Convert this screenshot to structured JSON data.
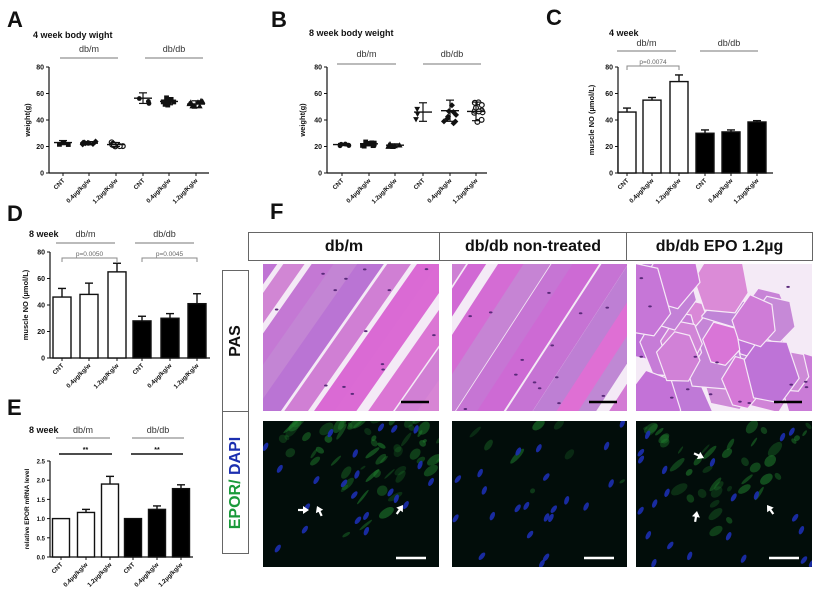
{
  "figure": {
    "panels": {
      "A": {
        "letter": "A",
        "title": "4 week body wight"
      },
      "B": {
        "letter": "B",
        "title": "8 week body weight"
      },
      "C": {
        "letter": "C",
        "title": "4 week"
      },
      "D": {
        "letter": "D",
        "title": "8 week"
      },
      "E": {
        "letter": "E",
        "title": "8 week"
      },
      "F": {
        "letter": "F"
      }
    },
    "panelF": {
      "column_headers": [
        "db/m",
        "db/db non-treated",
        "db/db  EPO 1.2µg"
      ],
      "row_labels": {
        "pas": "PAS",
        "epor_part": "EPOR/",
        "dapi_part": " DAPI"
      },
      "colors": {
        "epor": "#1a9a3a",
        "dapi": "#1c2fb0",
        "pas_stain": "#c86ad8",
        "fluor_bg": "#020d0a"
      },
      "images": [
        {
          "row": "PAS",
          "column": "db/m",
          "scale_bar": true
        },
        {
          "row": "PAS",
          "column": "db/db non-treated",
          "scale_bar": true
        },
        {
          "row": "PAS",
          "column": "db/db  EPO 1.2µg",
          "scale_bar": true
        },
        {
          "row": "EPOR/DAPI",
          "column": "db/m",
          "scale_bar": true,
          "arrows": 3
        },
        {
          "row": "EPOR/DAPI",
          "column": "db/db non-treated",
          "scale_bar": true,
          "arrows": 0
        },
        {
          "row": "EPOR/DAPI",
          "column": "db/db  EPO 1.2µg",
          "scale_bar": true,
          "arrows": 3
        }
      ]
    }
  },
  "chart_data": [
    {
      "id": "A",
      "type": "scatter",
      "title": "4 week body wight",
      "xlabel": "",
      "ylabel": "weight(g)",
      "ylim": [
        0,
        80
      ],
      "yticks": [
        0,
        20,
        40,
        60,
        80
      ],
      "groups": [
        "db/m",
        "db/db"
      ],
      "categories": [
        "CNT",
        "0.4µg/kg/w",
        "1.2µg/Kg/w",
        "CNT",
        "0.4µg/kg/w",
        "1.2µg/Kg/w"
      ],
      "means": [
        23,
        22.5,
        21.5,
        56.5,
        54,
        52
      ],
      "sd": [
        1.5,
        1.2,
        1.5,
        4,
        2.5,
        2.5
      ],
      "markers": [
        "square",
        "diamond",
        "circle-open",
        "circle",
        "square",
        "triangle"
      ],
      "n": [
        4,
        8,
        9,
        3,
        10,
        9
      ],
      "grid": false,
      "legend": "none"
    },
    {
      "id": "B",
      "type": "scatter",
      "title": "8 week body weight",
      "xlabel": "",
      "ylabel": "weight(g)",
      "ylim": [
        0,
        80
      ],
      "yticks": [
        0,
        20,
        40,
        60,
        80
      ],
      "groups": [
        "db/m",
        "db/db"
      ],
      "categories": [
        "CNT",
        "0.4µg/kg/w",
        "1.2µg/Kg/w",
        "CNT",
        "0.4µg/kg/w",
        "1.2µg/Kg/w"
      ],
      "means": [
        21.5,
        22,
        21,
        46,
        47,
        46.5
      ],
      "sd": [
        0.8,
        1.5,
        1,
        7,
        8,
        7
      ],
      "markers": [
        "circle",
        "square",
        "triangle",
        "triangle-down",
        "diamond",
        "circle-open"
      ],
      "n": [
        5,
        9,
        8,
        3,
        9,
        11
      ],
      "grid": false,
      "legend": "none"
    },
    {
      "id": "C",
      "type": "bar",
      "title": "4 week",
      "xlabel": "",
      "ylabel": "muscle NO (µmol/L)",
      "ylim": [
        0,
        80
      ],
      "yticks": [
        0,
        20,
        40,
        60,
        80
      ],
      "groups": [
        "db/m",
        "db/db"
      ],
      "categories": [
        "CNT",
        "0.4µg/kg/w",
        "1.2µg/Kg/w",
        "CNT",
        "0.4µg/kg/w",
        "1.2µg/Kg/w"
      ],
      "series": [
        {
          "name": "db/m",
          "fill": "#ffffff",
          "values": [
            46,
            55,
            69
          ],
          "err": [
            3,
            2,
            5
          ]
        },
        {
          "name": "db/db",
          "fill": "#000000",
          "values": [
            30,
            31,
            38.5
          ],
          "err": [
            2.5,
            1.5,
            1
          ]
        }
      ],
      "annotations": [
        {
          "type": "bracket",
          "from": 0,
          "to": 2,
          "label": "p=0.0074"
        }
      ],
      "grid": false,
      "legend": "none"
    },
    {
      "id": "D",
      "type": "bar",
      "title": "8 week",
      "xlabel": "",
      "ylabel": "muscle NO (µmol/L)",
      "ylim": [
        0,
        80
      ],
      "yticks": [
        0,
        20,
        40,
        60,
        80
      ],
      "groups": [
        "db/m",
        "db/db"
      ],
      "categories": [
        "CNT",
        "0.4µg/kg/w",
        "1.2µg/Kg/w",
        "CNT",
        "0.4µg/kg/w",
        "1.2µg/Kg/w"
      ],
      "series": [
        {
          "name": "db/m",
          "fill": "#ffffff",
          "values": [
            46,
            48,
            65
          ],
          "err": [
            6.5,
            8.5,
            6.5
          ]
        },
        {
          "name": "db/db",
          "fill": "#000000",
          "values": [
            28,
            30,
            41
          ],
          "err": [
            3.5,
            3.5,
            7.5
          ]
        }
      ],
      "annotations": [
        {
          "type": "bracket",
          "from": 0,
          "to": 2,
          "label": "p=0.0050"
        },
        {
          "type": "bracket",
          "from": 3,
          "to": 5,
          "label": "p=0.0045"
        }
      ],
      "grid": false,
      "legend": "none"
    },
    {
      "id": "E",
      "type": "bar",
      "title": "8 week",
      "xlabel": "",
      "ylabel": "relative EPOR mRNA level",
      "ylim": [
        0,
        2.5
      ],
      "yticks": [
        0.0,
        0.5,
        1.0,
        1.5,
        2.0,
        2.5
      ],
      "groups": [
        "db/m",
        "db/db"
      ],
      "categories": [
        "CNT",
        "0.4µg/kg/w",
        "1.2µg/kg/w",
        "CNT",
        "0.4µg/kg/w",
        "1.2µg/kg/w"
      ],
      "series": [
        {
          "name": "db/m",
          "fill": "#ffffff",
          "values": [
            1.0,
            1.16,
            1.9
          ],
          "err": [
            0,
            0.08,
            0.2
          ]
        },
        {
          "name": "db/db",
          "fill": "#000000",
          "values": [
            1.0,
            1.24,
            1.78
          ],
          "err": [
            0,
            0.09,
            0.1
          ]
        }
      ],
      "annotations": [
        {
          "type": "line",
          "from": 0,
          "to": 2,
          "label": "**"
        },
        {
          "type": "line",
          "from": 3,
          "to": 5,
          "label": "**"
        }
      ],
      "grid": false,
      "legend": "none"
    }
  ]
}
